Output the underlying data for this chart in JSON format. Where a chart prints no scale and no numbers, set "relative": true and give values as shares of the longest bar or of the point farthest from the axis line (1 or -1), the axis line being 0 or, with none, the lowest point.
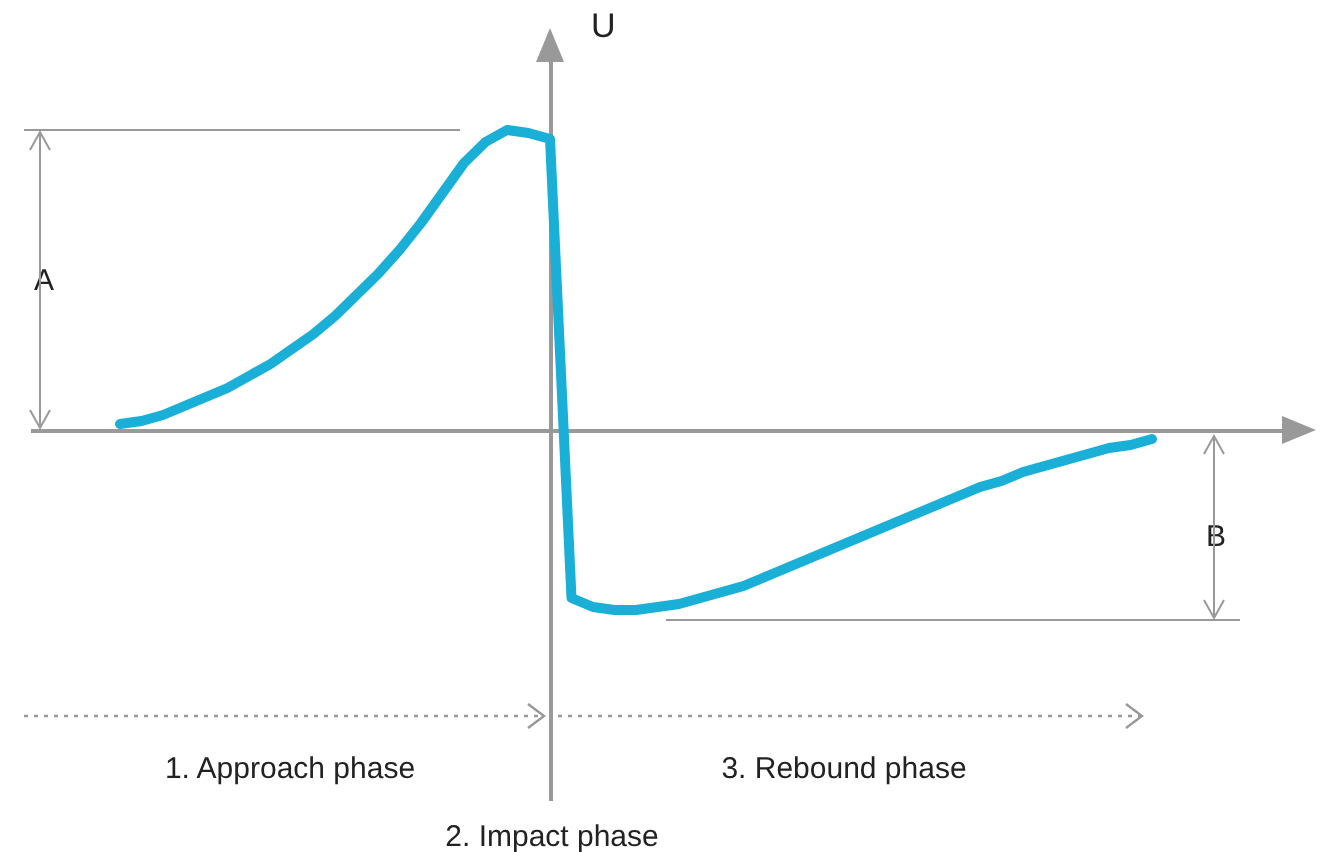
{
  "chart_data": {
    "type": "line",
    "relative": true,
    "ylabel": "U",
    "categories": [
      null,
      null,
      null,
      null,
      null,
      null,
      null,
      null,
      null,
      null,
      null,
      null,
      null,
      null,
      null,
      null,
      null,
      null,
      null,
      null,
      null,
      null,
      null,
      null,
      null,
      null,
      null,
      null,
      null,
      null,
      null,
      null,
      null,
      null,
      null,
      null,
      null,
      null,
      null,
      null,
      null,
      null,
      null,
      null,
      null,
      null,
      null,
      null,
      null
    ],
    "series": [
      {
        "color": "#1aafd6",
        "values": [
          0.02,
          0.03,
          0.05,
          0.08,
          0.11,
          0.14,
          0.18,
          0.22,
          0.27,
          0.32,
          0.38,
          0.45,
          0.52,
          0.6,
          0.69,
          0.79,
          0.89,
          0.96,
          1.0,
          0.99,
          0.97,
          -0.56,
          -0.59,
          -0.6,
          -0.6,
          -0.59,
          -0.58,
          -0.56,
          -0.54,
          -0.52,
          -0.49,
          -0.46,
          -0.43,
          -0.4,
          -0.37,
          -0.34,
          -0.31,
          -0.28,
          -0.25,
          -0.22,
          -0.19,
          -0.17,
          -0.14,
          -0.12,
          -0.1,
          -0.08,
          -0.06,
          -0.05,
          -0.03
        ]
      }
    ],
    "annotations": [
      "A",
      "B",
      "1. Approach phase",
      "2. Impact phase",
      "3. Rebound phase"
    ]
  }
}
